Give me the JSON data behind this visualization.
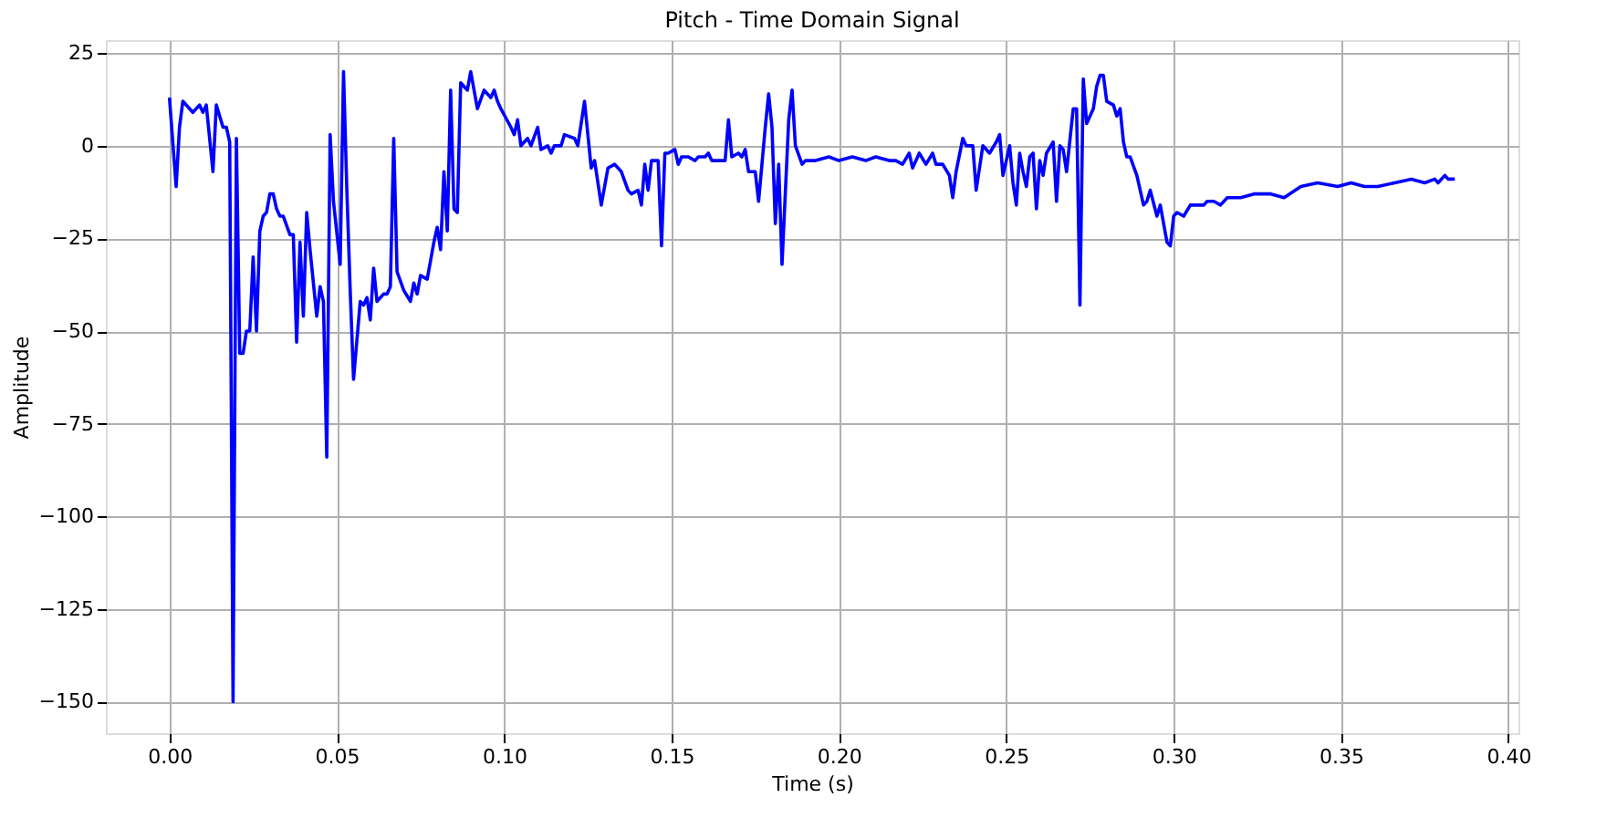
{
  "chart_data": {
    "type": "line",
    "title": "Pitch - Time Domain Signal",
    "xlabel": "Time (s)",
    "ylabel": "Amplitude",
    "x": [
      0.0,
      0.002,
      0.003,
      0.004,
      0.007,
      0.009,
      0.01,
      0.011,
      0.013,
      0.014,
      0.016,
      0.017,
      0.018,
      0.019,
      0.02,
      0.021,
      0.022,
      0.023,
      0.024,
      0.025,
      0.026,
      0.027,
      0.028,
      0.029,
      0.03,
      0.031,
      0.032,
      0.033,
      0.034,
      0.036,
      0.037,
      0.038,
      0.039,
      0.04,
      0.041,
      0.042,
      0.043,
      0.044,
      0.045,
      0.046,
      0.047,
      0.048,
      0.049,
      0.051,
      0.052,
      0.053,
      0.054,
      0.055,
      0.057,
      0.058,
      0.059,
      0.06,
      0.061,
      0.062,
      0.064,
      0.065,
      0.066,
      0.067,
      0.068,
      0.07,
      0.072,
      0.073,
      0.074,
      0.075,
      0.077,
      0.079,
      0.08,
      0.081,
      0.082,
      0.083,
      0.084,
      0.085,
      0.086,
      0.087,
      0.089,
      0.09,
      0.092,
      0.094,
      0.096,
      0.097,
      0.098,
      0.099,
      0.102,
      0.103,
      0.104,
      0.105,
      0.107,
      0.108,
      0.11,
      0.111,
      0.113,
      0.114,
      0.115,
      0.117,
      0.118,
      0.121,
      0.122,
      0.124,
      0.126,
      0.127,
      0.129,
      0.131,
      0.133,
      0.135,
      0.137,
      0.138,
      0.14,
      0.141,
      0.142,
      0.143,
      0.144,
      0.146,
      0.147,
      0.148,
      0.149,
      0.151,
      0.152,
      0.153,
      0.155,
      0.157,
      0.158,
      0.16,
      0.161,
      0.162,
      0.166,
      0.167,
      0.168,
      0.17,
      0.171,
      0.172,
      0.173,
      0.175,
      0.176,
      0.178,
      0.179,
      0.18,
      0.181,
      0.182,
      0.183,
      0.185,
      0.186,
      0.187,
      0.189,
      0.19,
      0.193,
      0.197,
      0.2,
      0.204,
      0.208,
      0.211,
      0.215,
      0.217,
      0.219,
      0.221,
      0.222,
      0.224,
      0.226,
      0.228,
      0.229,
      0.231,
      0.233,
      0.234,
      0.235,
      0.237,
      0.238,
      0.24,
      0.241,
      0.243,
      0.245,
      0.247,
      0.248,
      0.249,
      0.251,
      0.252,
      0.253,
      0.254,
      0.255,
      0.256,
      0.257,
      0.258,
      0.259,
      0.26,
      0.261,
      0.262,
      0.264,
      0.265,
      0.266,
      0.267,
      0.268,
      0.27,
      0.271,
      0.272,
      0.273,
      0.274,
      0.276,
      0.277,
      0.278,
      0.279,
      0.28,
      0.282,
      0.283,
      0.284,
      0.285,
      0.286,
      0.287,
      0.289,
      0.291,
      0.292,
      0.293,
      0.295,
      0.296,
      0.298,
      0.299,
      0.3,
      0.301,
      0.303,
      0.305,
      0.307,
      0.309,
      0.31,
      0.311,
      0.312,
      0.314,
      0.316,
      0.32,
      0.324,
      0.329,
      0.333,
      0.338,
      0.343,
      0.349,
      0.353,
      0.357,
      0.361,
      0.366,
      0.371,
      0.375,
      0.378,
      0.379,
      0.381,
      0.382,
      0.384
    ],
    "series": [
      {
        "color": "#0000ff",
        "values": [
          13,
          -11,
          5,
          12,
          9,
          11,
          9,
          11,
          -7,
          11,
          5,
          5,
          1,
          -150,
          2,
          -56,
          -56,
          -50,
          -50,
          -30,
          -50,
          -23,
          -19,
          -18,
          -13,
          -13,
          -17,
          -19,
          -19,
          -24,
          -24,
          -53,
          -26,
          -46,
          -18,
          -28,
          -37,
          -46,
          -38,
          -42,
          -84,
          3,
          -15,
          -32,
          20,
          -12,
          -39,
          -63,
          -42,
          -43,
          -41,
          -47,
          -33,
          -42,
          -40,
          -40,
          -38,
          2,
          -34,
          -39,
          -42,
          -37,
          -40,
          -35,
          -36,
          -26,
          -22,
          -28,
          -7,
          -23,
          15,
          -17,
          -18,
          17,
          15,
          20,
          10,
          15,
          13,
          15,
          12,
          10,
          5,
          3,
          7,
          0,
          2,
          0,
          5,
          -1,
          0,
          -2,
          0,
          0,
          3,
          2,
          0,
          12,
          -6,
          -4,
          -16,
          -6,
          -5,
          -7,
          -12,
          -13,
          -12,
          -16,
          -5,
          -12,
          -4,
          -4,
          -27,
          -2,
          -2,
          -1,
          -5,
          -3,
          -3,
          -4,
          -3,
          -3,
          -2,
          -4,
          -4,
          7,
          -3,
          -2,
          -3,
          -1,
          -7,
          -7,
          -15,
          5,
          14,
          5,
          -21,
          -5,
          -32,
          7,
          15,
          0,
          -5,
          -4,
          -4,
          -3,
          -4,
          -3,
          -4,
          -3,
          -4,
          -4,
          -5,
          -2,
          -6,
          -2,
          -5,
          -2,
          -5,
          -5,
          -8,
          -14,
          -7,
          2,
          0,
          0,
          -12,
          0,
          -2,
          1,
          3,
          -8,
          0,
          -10,
          -16,
          -2,
          -7,
          -11,
          -3,
          -2,
          -17,
          -4,
          -8,
          -2,
          1,
          -15,
          0,
          -1,
          -7,
          10,
          10,
          -43,
          18,
          6,
          10,
          16,
          19,
          19,
          12,
          11,
          8,
          10,
          1,
          -3,
          -3,
          -8,
          -16,
          -15,
          -12,
          -19,
          -16,
          -26,
          -27,
          -19,
          -18,
          -19,
          -16,
          -16,
          -16,
          -15,
          -15,
          -15,
          -16,
          -14,
          -14,
          -13,
          -13,
          -14,
          -11,
          -10,
          -11,
          -10,
          -11,
          -11,
          -10,
          -9,
          -10,
          -9,
          -10,
          -8,
          -9,
          -9
        ]
      }
    ],
    "xlim": [
      -0.019,
      0.403
    ],
    "ylim": [
      -158.5,
      28.5
    ],
    "xticks": [
      {
        "value": 0,
        "label": "0.00"
      },
      {
        "value": 0.05,
        "label": "0.05"
      },
      {
        "value": 0.1,
        "label": "0.10"
      },
      {
        "value": 0.15,
        "label": "0.15"
      },
      {
        "value": 0.2,
        "label": "0.20"
      },
      {
        "value": 0.25,
        "label": "0.25"
      },
      {
        "value": 0.3,
        "label": "0.30"
      },
      {
        "value": 0.35,
        "label": "0.35"
      },
      {
        "value": 0.4,
        "label": "0.40"
      }
    ],
    "yticks": [
      {
        "value": -150,
        "label": "−150"
      },
      {
        "value": -125,
        "label": "−125"
      },
      {
        "value": -100,
        "label": "−100"
      },
      {
        "value": -75,
        "label": "−75"
      },
      {
        "value": -50,
        "label": "−50"
      },
      {
        "value": -25,
        "label": "−25"
      },
      0,
      25
    ],
    "grid": true,
    "marker": "none",
    "line_style": "solid",
    "legend": false
  }
}
